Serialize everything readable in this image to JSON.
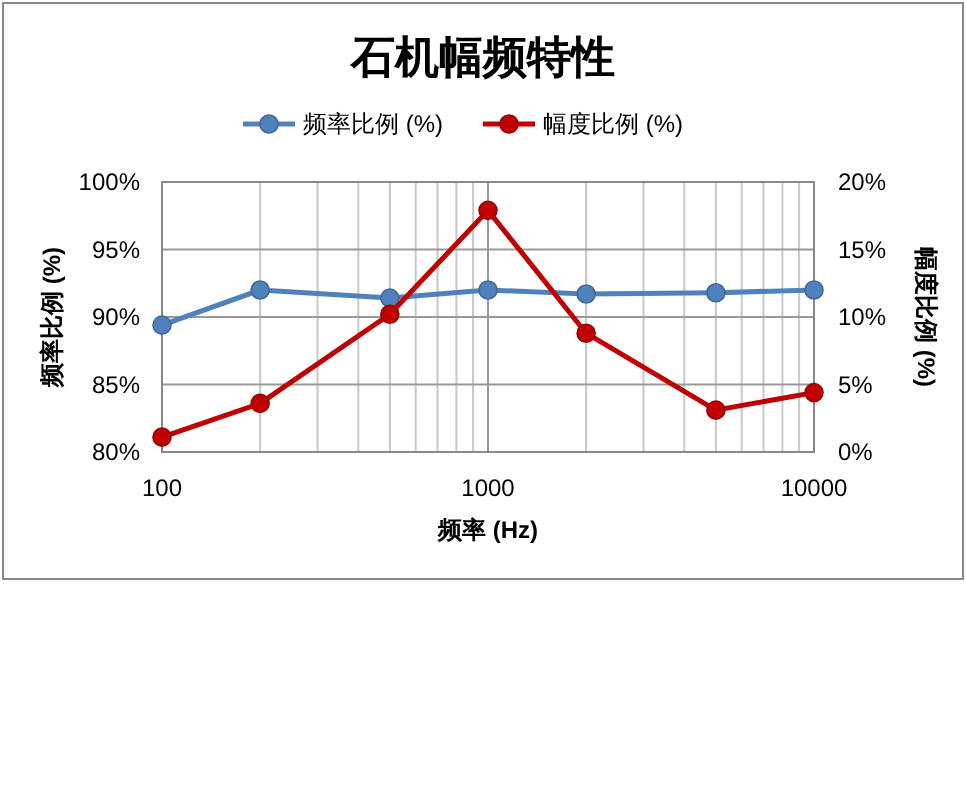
{
  "chart_data": {
    "type": "line",
    "title": "石机幅频特性",
    "xlabel": "频率 (Hz)",
    "ylabel": "频率比例 (%)",
    "y2label": "幅度比例 (%)",
    "x": [
      100,
      200,
      500,
      1000,
      2000,
      5000,
      10000
    ],
    "series": [
      {
        "name": "频率比例 (%)",
        "color": "#4f81bd",
        "values": [
          89.4,
          92.0,
          91.4,
          92.0,
          91.7,
          91.8,
          92.0
        ]
      },
      {
        "name": "幅度比例 (%)",
        "color": "#c00000",
        "axis": "y2",
        "values": [
          1.1,
          3.6,
          10.2,
          17.9,
          8.8,
          3.1,
          4.4
        ]
      }
    ],
    "log": "x",
    "xlim": [
      100,
      10000
    ],
    "xticks": [
      100,
      1000,
      10000
    ],
    "ylim": [
      80,
      100
    ],
    "yticks": [
      {
        "value": 80,
        "label": "80%"
      },
      {
        "value": 85,
        "label": "85%"
      },
      {
        "value": 90,
        "label": "90%"
      },
      {
        "value": 95,
        "label": "95%"
      },
      {
        "value": 100,
        "label": "100%"
      }
    ],
    "y2lim": [
      0,
      20
    ],
    "y2ticks": [
      {
        "value": 0,
        "label": "0%"
      },
      {
        "value": 5,
        "label": "5%"
      },
      {
        "value": 10,
        "label": "10%"
      },
      {
        "value": 15,
        "label": "15%"
      },
      {
        "value": 20,
        "label": "20%"
      }
    ],
    "grid": true,
    "legend": "top",
    "marker": "circle",
    "line_style": "solid"
  }
}
